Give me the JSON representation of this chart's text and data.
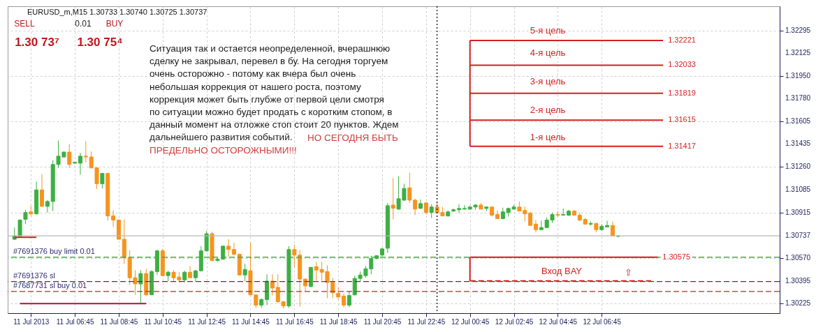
{
  "chart_data": {
    "type": "candlestick",
    "title": "EURUSD_m,M15  1.30733 1.30740 1.30725 1.30737",
    "x": [
      "2013-07-11T04:00",
      "2013-07-11T04:15",
      "2013-07-11T04:30",
      "2013-07-11T04:45",
      "2013-07-11T05:00",
      "2013-07-11T05:15",
      "2013-07-11T05:30",
      "2013-07-11T05:45",
      "2013-07-11T06:00",
      "2013-07-11T06:15",
      "2013-07-11T06:30",
      "2013-07-11T06:45",
      "2013-07-11T07:00",
      "2013-07-11T07:15",
      "2013-07-11T07:30",
      "2013-07-11T07:45",
      "2013-07-11T08:00",
      "2013-07-11T08:15",
      "2013-07-11T08:30",
      "2013-07-11T08:45",
      "2013-07-11T09:00",
      "2013-07-11T09:15",
      "2013-07-11T09:30",
      "2013-07-11T09:45",
      "2013-07-11T10:00",
      "2013-07-11T10:15",
      "2013-07-11T10:30",
      "2013-07-11T10:45",
      "2013-07-11T11:00",
      "2013-07-11T11:15",
      "2013-07-11T11:30",
      "2013-07-11T11:45",
      "2013-07-11T12:00",
      "2013-07-11T12:15",
      "2013-07-11T12:30",
      "2013-07-11T12:45",
      "2013-07-11T13:00",
      "2013-07-11T13:15",
      "2013-07-11T13:30",
      "2013-07-11T13:45",
      "2013-07-11T14:00",
      "2013-07-11T14:15",
      "2013-07-11T14:30",
      "2013-07-11T14:45",
      "2013-07-11T15:00",
      "2013-07-11T15:15",
      "2013-07-11T15:30",
      "2013-07-11T15:45",
      "2013-07-11T16:00",
      "2013-07-11T16:15",
      "2013-07-11T16:30",
      "2013-07-11T16:45",
      "2013-07-11T17:00",
      "2013-07-11T17:15",
      "2013-07-11T17:30",
      "2013-07-11T17:45",
      "2013-07-11T18:00",
      "2013-07-11T18:15",
      "2013-07-11T18:30",
      "2013-07-11T18:45",
      "2013-07-11T19:00",
      "2013-07-11T19:15",
      "2013-07-11T19:30",
      "2013-07-11T19:45",
      "2013-07-11T20:00",
      "2013-07-11T20:15",
      "2013-07-11T20:30",
      "2013-07-11T20:45",
      "2013-07-11T21:00",
      "2013-07-11T21:15",
      "2013-07-11T21:30",
      "2013-07-11T21:45",
      "2013-07-11T22:00",
      "2013-07-11T22:15",
      "2013-07-11T22:30",
      "2013-07-11T22:45",
      "2013-07-11T23:00",
      "2013-07-11T23:15",
      "2013-07-11T23:30",
      "2013-07-11T23:45",
      "2013-07-12T00:00",
      "2013-07-12T00:15",
      "2013-07-12T00:30",
      "2013-07-12T00:45",
      "2013-07-12T01:00",
      "2013-07-12T01:15",
      "2013-07-12T01:30",
      "2013-07-12T01:45",
      "2013-07-12T02:00",
      "2013-07-12T02:15",
      "2013-07-12T02:30",
      "2013-07-12T02:45",
      "2013-07-12T03:00",
      "2013-07-12T03:15",
      "2013-07-12T03:30",
      "2013-07-12T03:45",
      "2013-07-12T04:00",
      "2013-07-12T04:15",
      "2013-07-12T04:30",
      "2013-07-12T04:45",
      "2013-07-12T05:00",
      "2013-07-12T05:15",
      "2013-07-12T05:30",
      "2013-07-12T05:45",
      "2013-07-12T06:00",
      "2013-07-12T06:15",
      "2013-07-12T06:30",
      "2013-07-12T06:45",
      "2013-07-12T07:00",
      "2013-07-12T07:15",
      "2013-07-12T07:30"
    ],
    "ohlc": [
      [
        1.30711,
        1.308,
        1.30706,
        1.30737
      ],
      [
        1.30732,
        1.30862,
        1.30727,
        1.30857
      ],
      [
        1.30862,
        1.30935,
        1.30826,
        1.30914
      ],
      [
        1.30919,
        1.30966,
        1.30888,
        1.30904
      ],
      [
        1.30904,
        1.31149,
        1.30899,
        1.31086
      ],
      [
        1.31086,
        1.31206,
        1.30961,
        1.30961
      ],
      [
        1.30961,
        1.31008,
        1.30914,
        1.30998
      ],
      [
        1.30998,
        1.3131,
        1.30925,
        1.31279
      ],
      [
        1.31279,
        1.31461,
        1.31253,
        1.31342
      ],
      [
        1.31336,
        1.31378,
        1.31331,
        1.31373
      ],
      [
        1.31373,
        1.31435,
        1.31253,
        1.31279
      ],
      [
        1.31289,
        1.313,
        1.31284,
        1.31295
      ],
      [
        1.31289,
        1.31368,
        1.31201,
        1.31342
      ],
      [
        1.31342,
        1.31456,
        1.31295,
        1.31336
      ],
      [
        1.31336,
        1.31378,
        1.31248,
        1.31253
      ],
      [
        1.31253,
        1.31258,
        1.31092,
        1.31133
      ],
      [
        1.31133,
        1.31211,
        1.31097,
        1.31211
      ],
      [
        1.31211,
        1.31216,
        1.30852,
        1.30888
      ],
      [
        1.30888,
        1.3093,
        1.30805,
        1.30857
      ],
      [
        1.30857,
        1.30862,
        1.30711,
        1.30711
      ],
      [
        1.30711,
        1.30862,
        1.30524,
        1.3057
      ],
      [
        1.3057,
        1.30628,
        1.30367,
        1.30419
      ],
      [
        1.30419,
        1.30477,
        1.30289,
        1.30372
      ],
      [
        1.30372,
        1.30477,
        1.30227,
        1.30451
      ],
      [
        1.30451,
        1.30487,
        1.30279,
        1.30289
      ],
      [
        1.30289,
        1.30477,
        1.30289,
        1.30466
      ],
      [
        1.30466,
        1.30633,
        1.3044,
        1.30623
      ],
      [
        1.30623,
        1.30638,
        1.3043,
        1.30435
      ],
      [
        1.30435,
        1.30472,
        1.30393,
        1.30461
      ],
      [
        1.30461,
        1.30477,
        1.30393,
        1.30419
      ],
      [
        1.30424,
        1.30461,
        1.30383,
        1.30403
      ],
      [
        1.30403,
        1.30472,
        1.30383,
        1.30461
      ],
      [
        1.30461,
        1.30508,
        1.30419,
        1.30419
      ],
      [
        1.30419,
        1.30477,
        1.30393,
        1.30472
      ],
      [
        1.30472,
        1.30659,
        1.30466,
        1.30623
      ],
      [
        1.30623,
        1.30774,
        1.30618,
        1.30753
      ],
      [
        1.30753,
        1.30768,
        1.30545,
        1.3055
      ],
      [
        1.3055,
        1.30571,
        1.3054,
        1.3056
      ],
      [
        1.3056,
        1.30664,
        1.30555,
        1.30659
      ],
      [
        1.30659,
        1.30711,
        1.30581,
        1.30633
      ],
      [
        1.30633,
        1.30685,
        1.30591,
        1.30597
      ],
      [
        1.30597,
        1.30602,
        1.30435,
        1.3044
      ],
      [
        1.3044,
        1.30524,
        1.30393,
        1.30482
      ],
      [
        1.30472,
        1.30685,
        1.30284,
        1.30289
      ],
      [
        1.30289,
        1.30289,
        1.3019,
        1.30211
      ],
      [
        1.30211,
        1.30263,
        1.3019,
        1.30253
      ],
      [
        1.30253,
        1.30445,
        1.30211,
        1.30393
      ],
      [
        1.30393,
        1.30445,
        1.30284,
        1.30341
      ],
      [
        1.30346,
        1.30445,
        1.30227,
        1.30237
      ],
      [
        1.30237,
        1.30242,
        1.30185,
        1.30205
      ],
      [
        1.30205,
        1.30659,
        1.3019,
        1.30633
      ],
      [
        1.30633,
        1.30669,
        1.30498,
        1.30591
      ],
      [
        1.30591,
        1.30628,
        1.302,
        1.30409
      ],
      [
        1.30409,
        1.30409,
        1.30315,
        1.30357
      ],
      [
        1.30352,
        1.30498,
        1.30346,
        1.30498
      ],
      [
        1.30503,
        1.30539,
        1.30398,
        1.30477
      ],
      [
        1.30482,
        1.30539,
        1.30398,
        1.30461
      ],
      [
        1.30466,
        1.30513,
        1.30263,
        1.30383
      ],
      [
        1.30383,
        1.30419,
        1.30263,
        1.30305
      ],
      [
        1.303,
        1.30346,
        1.30253,
        1.30273
      ],
      [
        1.30279,
        1.303,
        1.30195,
        1.30211
      ],
      [
        1.30211,
        1.3032,
        1.30195,
        1.30284
      ],
      [
        1.30289,
        1.30435,
        1.30284,
        1.30414
      ],
      [
        1.30414,
        1.30466,
        1.30388,
        1.3044
      ],
      [
        1.30435,
        1.30508,
        1.30419,
        1.30487
      ],
      [
        1.30487,
        1.30586,
        1.30445,
        1.30565
      ],
      [
        1.30565,
        1.30591,
        1.3056,
        1.30586
      ],
      [
        1.30591,
        1.30648,
        1.30581,
        1.30638
      ],
      [
        1.30643,
        1.30987,
        1.30607,
        1.30966
      ],
      [
        1.30971,
        1.31175,
        1.30862,
        1.30946
      ],
      [
        1.3094,
        1.3119,
        1.30935,
        1.31019
      ],
      [
        1.31008,
        1.31133,
        1.31003,
        1.31097
      ],
      [
        1.31102,
        1.31217,
        1.30987,
        1.31008
      ],
      [
        1.31008,
        1.31019,
        1.30894,
        1.3094
      ],
      [
        1.30946,
        1.31013,
        1.3094,
        1.30982
      ],
      [
        1.30987,
        1.30992,
        1.30899,
        1.30914
      ],
      [
        1.30914,
        1.30977,
        1.30873,
        1.30956
      ],
      [
        1.30956,
        1.30987,
        1.30904,
        1.30914
      ],
      [
        1.30914,
        1.30956,
        1.30888,
        1.30888
      ],
      [
        1.30888,
        1.3093,
        1.30883,
        1.30919
      ],
      [
        1.30925,
        1.30945,
        1.30919,
        1.30935
      ],
      [
        1.30935,
        1.30977,
        1.30909,
        1.30945
      ],
      [
        1.3094,
        1.30971,
        1.30935,
        1.30945
      ],
      [
        1.3094,
        1.30966,
        1.30935,
        1.30956
      ],
      [
        1.30956,
        1.30977,
        1.30935,
        1.30971
      ],
      [
        1.30971,
        1.30987,
        1.3094,
        1.3094
      ],
      [
        1.30945,
        1.30961,
        1.30925,
        1.30956
      ],
      [
        1.30956,
        1.30956,
        1.30883,
        1.30894
      ],
      [
        1.30899,
        1.3093,
        1.30868,
        1.30868
      ],
      [
        1.30868,
        1.30951,
        1.30862,
        1.30919
      ],
      [
        1.30914,
        1.30951,
        1.30883,
        1.30945
      ],
      [
        1.3094,
        1.30971,
        1.30935,
        1.30956
      ],
      [
        1.30956,
        1.30998,
        1.30925,
        1.30925
      ],
      [
        1.3093,
        1.30961,
        1.30847,
        1.30904
      ],
      [
        1.30909,
        1.30919,
        1.30816,
        1.30816
      ],
      [
        1.30826,
        1.30857,
        1.30763,
        1.30784
      ],
      [
        1.30784,
        1.30852,
        1.30779,
        1.308
      ],
      [
        1.308,
        1.30878,
        1.30795,
        1.30857
      ],
      [
        1.30857,
        1.30914,
        1.30836,
        1.30899
      ],
      [
        1.30899,
        1.30925,
        1.30878,
        1.30894
      ],
      [
        1.30894,
        1.30945,
        1.30894,
        1.30899
      ],
      [
        1.30894,
        1.30935,
        1.30888,
        1.30925
      ],
      [
        1.30925,
        1.30935,
        1.30894,
        1.30894
      ],
      [
        1.30894,
        1.30914,
        1.30847,
        1.30857
      ],
      [
        1.30862,
        1.30873,
        1.30821,
        1.30826
      ],
      [
        1.30826,
        1.30847,
        1.30816,
        1.30831
      ],
      [
        1.30831,
        1.30836,
        1.30763,
        1.30784
      ],
      [
        1.30784,
        1.30826,
        1.30774,
        1.3081
      ],
      [
        1.30805,
        1.30852,
        1.30805,
        1.30816
      ],
      [
        1.30816,
        1.30847,
        1.30737,
        1.30737
      ],
      [
        1.30733,
        1.3074,
        1.30725,
        1.30737
      ]
    ],
    "colors": [
      "#3cb043",
      "#3cb043",
      "#3cb043",
      "#f7931e",
      "#3cb043",
      "#f7931e",
      "#3cb043",
      "#3cb043",
      "#3cb043",
      "#3cb043",
      "#f7931e",
      "#3cb043",
      "#3cb043",
      "#f7931e",
      "#f7931e",
      "#f7931e",
      "#3cb043",
      "#f7931e",
      "#f7931e",
      "#f7931e",
      "#f7931e",
      "#f7931e",
      "#f7931e",
      "#3cb043",
      "#f7931e",
      "#3cb043",
      "#3cb043",
      "#f7931e",
      "#3cb043",
      "#f7931e",
      "#f7931e",
      "#3cb043",
      "#f7931e",
      "#3cb043",
      "#3cb043",
      "#3cb043",
      "#f7931e",
      "#3cb043",
      "#3cb043",
      "#f7931e",
      "#f7931e",
      "#f7931e",
      "#3cb043",
      "#f7931e",
      "#f7931e",
      "#3cb043",
      "#3cb043",
      "#f7931e",
      "#f7931e",
      "#f7931e",
      "#3cb043",
      "#f7931e",
      "#f7931e",
      "#f7931e",
      "#3cb043",
      "#f7931e",
      "#f7931e",
      "#f7931e",
      "#f7931e",
      "#f7931e",
      "#f7931e",
      "#3cb043",
      "#3cb043",
      "#3cb043",
      "#3cb043",
      "#3cb043",
      "#3cb043",
      "#3cb043",
      "#3cb043",
      "#f7931e",
      "#3cb043",
      "#3cb043",
      "#f7931e",
      "#f7931e",
      "#3cb043",
      "#f7931e",
      "#3cb043",
      "#f7931e",
      "#f7931e",
      "#3cb043",
      "#3cb043",
      "#3cb043",
      "#3cb043",
      "#3cb043",
      "#3cb043",
      "#f7931e",
      "#3cb043",
      "#f7931e",
      "#f7931e",
      "#3cb043",
      "#3cb043",
      "#3cb043",
      "#f7931e",
      "#f7931e",
      "#f7931e",
      "#f7931e",
      "#3cb043",
      "#3cb043",
      "#3cb043",
      "#f7931e",
      "#3cb043",
      "#3cb043",
      "#f7931e",
      "#f7931e",
      "#f7931e",
      "#3cb043",
      "#f7931e",
      "#3cb043",
      "#3cb043",
      "#f7931e",
      "#3cb043"
    ],
    "xlim": [
      "2013-07-11T03:51",
      "2013-07-12T14:42"
    ],
    "ylim": [
      1.3015,
      1.3248
    ],
    "xticks": [
      {
        "value": "2013-07-11T04:45",
        "label": "11 Jul 2013"
      },
      {
        "value": "2013-07-11T06:45",
        "label": "11 Jul 06:45"
      },
      {
        "value": "2013-07-11T08:45",
        "label": "11 Jul 08:45"
      },
      {
        "value": "2013-07-11T10:45",
        "label": "11 Jul 10:45"
      },
      {
        "value": "2013-07-11T12:45",
        "label": "11 Jul 12:45"
      },
      {
        "value": "2013-07-11T14:45",
        "label": "11 Jul 14:45"
      },
      {
        "value": "2013-07-11T16:45",
        "label": "11 Jul 16:45"
      },
      {
        "value": "2013-07-11T18:45",
        "label": "11 Jul 18:45"
      },
      {
        "value": "2013-07-11T20:45",
        "label": "11 Jul 20:45"
      },
      {
        "value": "2013-07-11T22:45",
        "label": "11 Jul 22:45"
      },
      {
        "value": "2013-07-12T00:45",
        "label": "12 Jul 00:45"
      },
      {
        "value": "2013-07-12T02:45",
        "label": "12 Jul 02:45"
      },
      {
        "value": "2013-07-12T04:45",
        "label": "12 Jul 04:45"
      },
      {
        "value": "2013-07-12T06:45",
        "label": "12 Jul 06:45"
      }
    ],
    "yticks": [
      1.32295,
      1.32125,
      {
        "value": 1.3195,
        "label": "1.31950"
      },
      {
        "value": 1.3178,
        "label": "1.31780"
      },
      1.31605,
      1.31435,
      {
        "value": 1.3126,
        "label": "1.31260"
      },
      1.31085,
      1.30915,
      1.30737,
      {
        "value": 1.3057,
        "label": "1.30570"
      },
      1.30395,
      1.30225
    ],
    "grid": true,
    "series": [
      {
        "type": "line",
        "x": [
          "2013-07-11T04:00",
          "2013-07-11T05:00"
        ],
        "values": [
          1.30726,
          1.30726
        ],
        "color": "#d42020"
      },
      {
        "type": "line",
        "x": [
          "2013-07-11T04:15",
          "2013-07-11T10:00"
        ],
        "values": [
          1.30223,
          1.30223
        ],
        "color": "#b01040"
      },
      {
        "type": "line",
        "x": [
          "2013-07-12T00:45",
          "2013-07-12T09:33"
        ],
        "values": [
          1.32221,
          1.32221
        ],
        "color": "#d42020",
        "value_labels": [
          null,
          "1.32221"
        ]
      },
      {
        "type": "line",
        "x": [
          "2013-07-12T00:45",
          "2013-07-12T09:33"
        ],
        "values": [
          1.32033,
          1.32033
        ],
        "color": "#d42020",
        "value_labels": [
          null,
          "1.32033"
        ]
      },
      {
        "type": "line",
        "x": [
          "2013-07-12T00:45",
          "2013-07-12T09:33"
        ],
        "values": [
          1.31819,
          1.31819
        ],
        "color": "#d42020",
        "value_labels": [
          null,
          "1.31819"
        ]
      },
      {
        "type": "line",
        "x": [
          "2013-07-12T00:45",
          "2013-07-12T09:33"
        ],
        "values": [
          1.31615,
          1.31615
        ],
        "color": "#d42020",
        "value_labels": [
          null,
          "1.31615"
        ]
      },
      {
        "type": "line",
        "x": [
          "2013-07-12T00:45",
          "2013-07-12T09:33"
        ],
        "values": [
          1.31417,
          1.31417
        ],
        "color": "#d42020",
        "value_labels": [
          null,
          "1.31417"
        ]
      },
      {
        "type": "line",
        "x": [
          "2013-07-12T00:45",
          "2013-07-12T00:45"
        ],
        "values": [
          1.31417,
          1.32221
        ],
        "color": "#d42020"
      },
      {
        "type": "line",
        "x": [
          "2013-07-12T00:45",
          "2013-07-12T09:18"
        ],
        "values": [
          1.30575,
          1.30575
        ],
        "color": "#d42020",
        "value_labels": [
          null,
          "1.30575"
        ]
      },
      {
        "type": "line",
        "x": [
          "2013-07-12T00:45",
          "2013-07-12T00:45"
        ],
        "values": [
          1.30395,
          1.30575
        ],
        "color": "#d42020"
      },
      {
        "type": "line",
        "x": [
          "2013-07-12T00:45",
          "2013-07-12T09:00"
        ],
        "values": [
          1.30395,
          1.30395
        ],
        "color": "#d42020",
        "line_style": "dashed"
      }
    ],
    "ref_lines": [
      {
        "axis": "y",
        "value": 1.30575,
        "label": "#7691376 buy limit 0.01",
        "color": "#3cb043",
        "line_style": "dashed"
      },
      {
        "axis": "y",
        "value": 1.3039,
        "label": "#7691376 sl",
        "color": "#8b1a3a",
        "line_style": "dashed"
      },
      {
        "axis": "y",
        "value": 1.30315,
        "label": "#7687731 sl buy 0.01",
        "color": "#cc2222",
        "line_style": "dashed"
      },
      {
        "axis": "y",
        "value": 1.30737,
        "color": "#b8b8b8",
        "line_style": "solid"
      },
      {
        "axis": "x",
        "value": "2013-07-11T23:15",
        "color": "#000000",
        "line_style": "dotted"
      }
    ],
    "annotations": [
      "Ситуация так и остается неопределенной, вчерашнюю\nсделку не закрывал, перевел в бу. На сегодня торгуем\nочень осторожно - потому как вчера был очень\nнебольшая коррекция от нашего роста, поэтому\nкоррекция может быть глубже от первой цели смотря\nпо ситуации можно будет продать с коротким стопом, в\nданный момент на отложке стоп стоит 20 пунктов. Ждем\nдальнейшего развития событий.",
      "НО СЕГОДНЯ БЫТЬ",
      "ПРЕДЕЛЬНО ОСТОРОЖНЫМИ!!!",
      "SELL",
      "0.01",
      "BUY",
      "1.30 73⁷",
      "1.30 75⁴",
      "5-я цель",
      "4-я цель",
      "3-я цель",
      "2-я цель",
      "1-я цель",
      "Вход BAY",
      "⇧"
    ]
  }
}
